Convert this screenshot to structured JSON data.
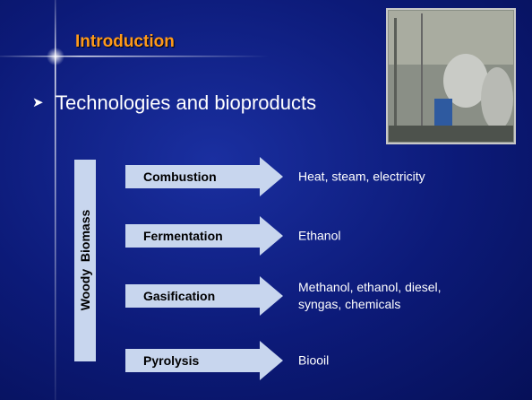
{
  "header": {
    "title": "Introduction"
  },
  "bullet": "Technologies and bioproducts",
  "source_label": "Woody  Biomass",
  "routes": [
    {
      "process": "Combustion",
      "products": "Heat, steam, electricity"
    },
    {
      "process": "Fermentation",
      "products": "Ethanol"
    },
    {
      "process": "Gasification",
      "products": "Methanol, ethanol, diesel, syngas, chemicals"
    },
    {
      "process": "Pyrolysis",
      "products": "Biooil"
    }
  ]
}
